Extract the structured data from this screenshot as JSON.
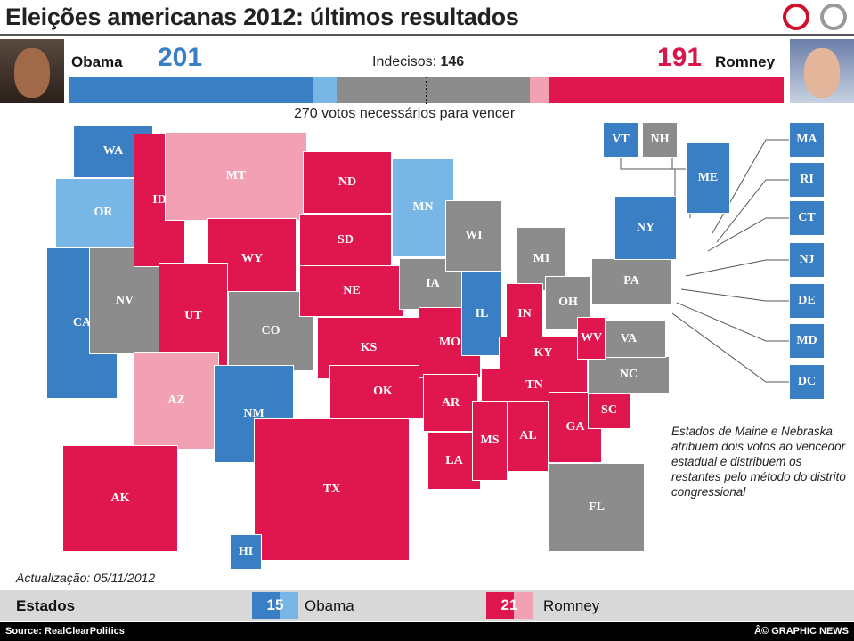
{
  "header": {
    "title": "Eleições americanas 2012: últimos resultados"
  },
  "colors": {
    "obama": "#3a7fc4",
    "obama_lean": "#78b6e6",
    "undecided": "#8c8c8c",
    "romney": "#e0174f",
    "romney_lean": "#f2a1b5"
  },
  "scoreboard": {
    "obama": {
      "name": "Obama",
      "votes": "201"
    },
    "romney": {
      "name": "Romney",
      "votes": "191"
    },
    "undecided_label": "Indecisos:",
    "undecided_votes": "146",
    "threshold_text": "270 votos necessários para vencer",
    "bar_segments": [
      {
        "category": "obama",
        "votes": 184
      },
      {
        "category": "obama_lean",
        "votes": 17
      },
      {
        "category": "undecided",
        "votes": 146
      },
      {
        "category": "romney_lean",
        "votes": 14
      },
      {
        "category": "romney",
        "votes": 177
      }
    ]
  },
  "states": [
    {
      "abbr": "WA",
      "cat": "obama"
    },
    {
      "abbr": "OR",
      "cat": "obama_lean"
    },
    {
      "abbr": "CA",
      "cat": "obama"
    },
    {
      "abbr": "NV",
      "cat": "undecided"
    },
    {
      "abbr": "ID",
      "cat": "romney"
    },
    {
      "abbr": "MT",
      "cat": "romney_lean"
    },
    {
      "abbr": "WY",
      "cat": "romney"
    },
    {
      "abbr": "UT",
      "cat": "romney"
    },
    {
      "abbr": "CO",
      "cat": "undecided"
    },
    {
      "abbr": "AZ",
      "cat": "romney_lean"
    },
    {
      "abbr": "NM",
      "cat": "obama"
    },
    {
      "abbr": "ND",
      "cat": "romney"
    },
    {
      "abbr": "SD",
      "cat": "romney"
    },
    {
      "abbr": "NE",
      "cat": "romney"
    },
    {
      "abbr": "KS",
      "cat": "romney"
    },
    {
      "abbr": "OK",
      "cat": "romney"
    },
    {
      "abbr": "TX",
      "cat": "romney"
    },
    {
      "abbr": "MN",
      "cat": "obama_lean"
    },
    {
      "abbr": "IA",
      "cat": "undecided"
    },
    {
      "abbr": "MO",
      "cat": "romney"
    },
    {
      "abbr": "AR",
      "cat": "romney"
    },
    {
      "abbr": "LA",
      "cat": "romney"
    },
    {
      "abbr": "WI",
      "cat": "undecided"
    },
    {
      "abbr": "IL",
      "cat": "obama"
    },
    {
      "abbr": "MI",
      "cat": "undecided"
    },
    {
      "abbr": "IN",
      "cat": "romney"
    },
    {
      "abbr": "OH",
      "cat": "undecided"
    },
    {
      "abbr": "KY",
      "cat": "romney"
    },
    {
      "abbr": "TN",
      "cat": "romney"
    },
    {
      "abbr": "MS",
      "cat": "romney"
    },
    {
      "abbr": "AL",
      "cat": "romney"
    },
    {
      "abbr": "GA",
      "cat": "romney"
    },
    {
      "abbr": "FL",
      "cat": "undecided"
    },
    {
      "abbr": "SC",
      "cat": "romney"
    },
    {
      "abbr": "NC",
      "cat": "undecided"
    },
    {
      "abbr": "VA",
      "cat": "undecided"
    },
    {
      "abbr": "WV",
      "cat": "romney"
    },
    {
      "abbr": "PA",
      "cat": "undecided"
    },
    {
      "abbr": "NY",
      "cat": "obama"
    },
    {
      "abbr": "ME",
      "cat": "obama"
    },
    {
      "abbr": "AK",
      "cat": "romney"
    },
    {
      "abbr": "HI",
      "cat": "obama"
    }
  ],
  "callouts": [
    {
      "abbr": "VT",
      "cat": "obama"
    },
    {
      "abbr": "NH",
      "cat": "undecided"
    },
    {
      "abbr": "MA",
      "cat": "obama"
    },
    {
      "abbr": "RI",
      "cat": "obama"
    },
    {
      "abbr": "CT",
      "cat": "obama"
    },
    {
      "abbr": "NJ",
      "cat": "obama"
    },
    {
      "abbr": "DE",
      "cat": "obama"
    },
    {
      "abbr": "MD",
      "cat": "obama"
    },
    {
      "abbr": "DC",
      "cat": "obama"
    }
  ],
  "note": "Estados de Maine e Nebraska atribuem dois votos ao vencedor estadual e distribuem os restantes pelo método do distrito congressional",
  "updated": "Actualização: 05/11/2012",
  "legend": {
    "label": "Estados",
    "obama_count": "15",
    "obama_label": "Obama",
    "romney_count": "21",
    "romney_label": "Romney"
  },
  "footer": {
    "source": "Source: RealClearPolitics",
    "credit": "Â© GRAPHIC NEWS"
  }
}
